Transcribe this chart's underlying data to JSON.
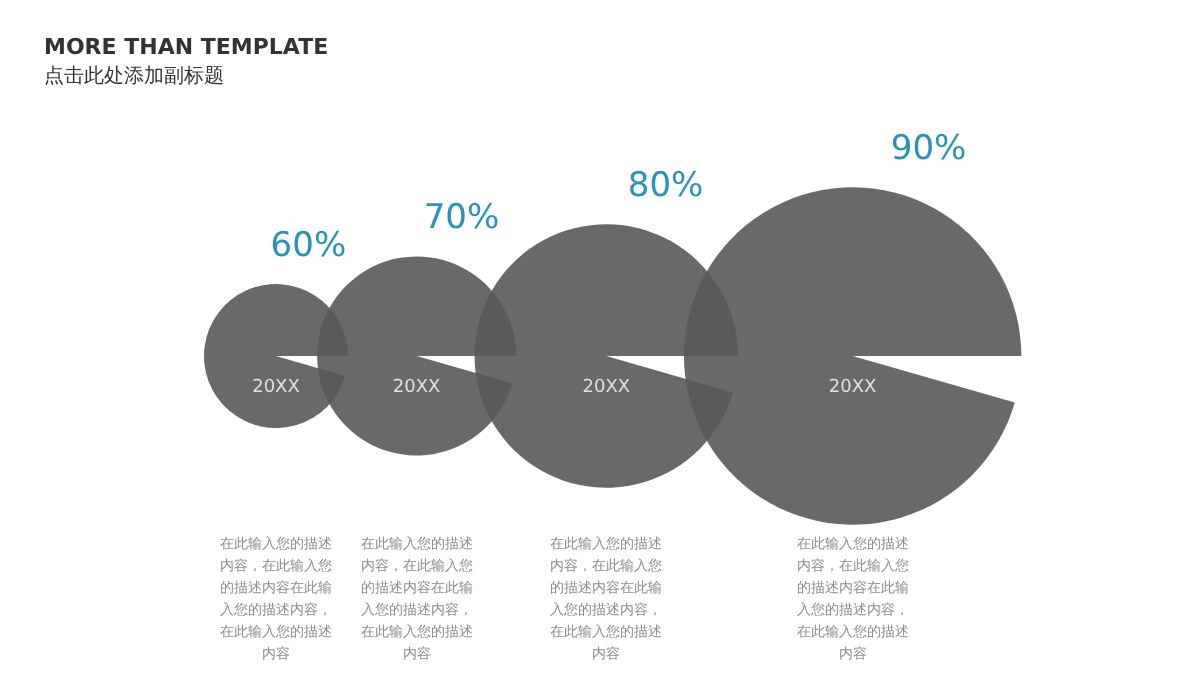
{
  "chart_data": {
    "type": "other",
    "title": "MORE THAN TEMPLATE",
    "subtitle": "点击此处添加副标题",
    "categories": [
      "20XX",
      "20XX",
      "20XX",
      "20XX"
    ],
    "values": [
      60,
      70,
      80,
      90
    ],
    "value_labels": [
      "60%",
      "70%",
      "80%",
      "90%"
    ],
    "color": "#595959",
    "annotations": [
      "在此输入您的描述内容，在此输入您的描述内容在此输入您的描述内容，在此输入您的描述内容",
      "在此输入您的描述内容，在此输入您的描述内容在此输入您的描述内容，在此输入您的描述内容",
      "在此输入您的描述内容，在此输入您的描述内容在此输入您的描述内容，在此输入您的描述内容",
      "在此输入您的描述内容，在此输入您的描述内容在此输入您的描述内容，在此输入您的描述内容"
    ]
  }
}
